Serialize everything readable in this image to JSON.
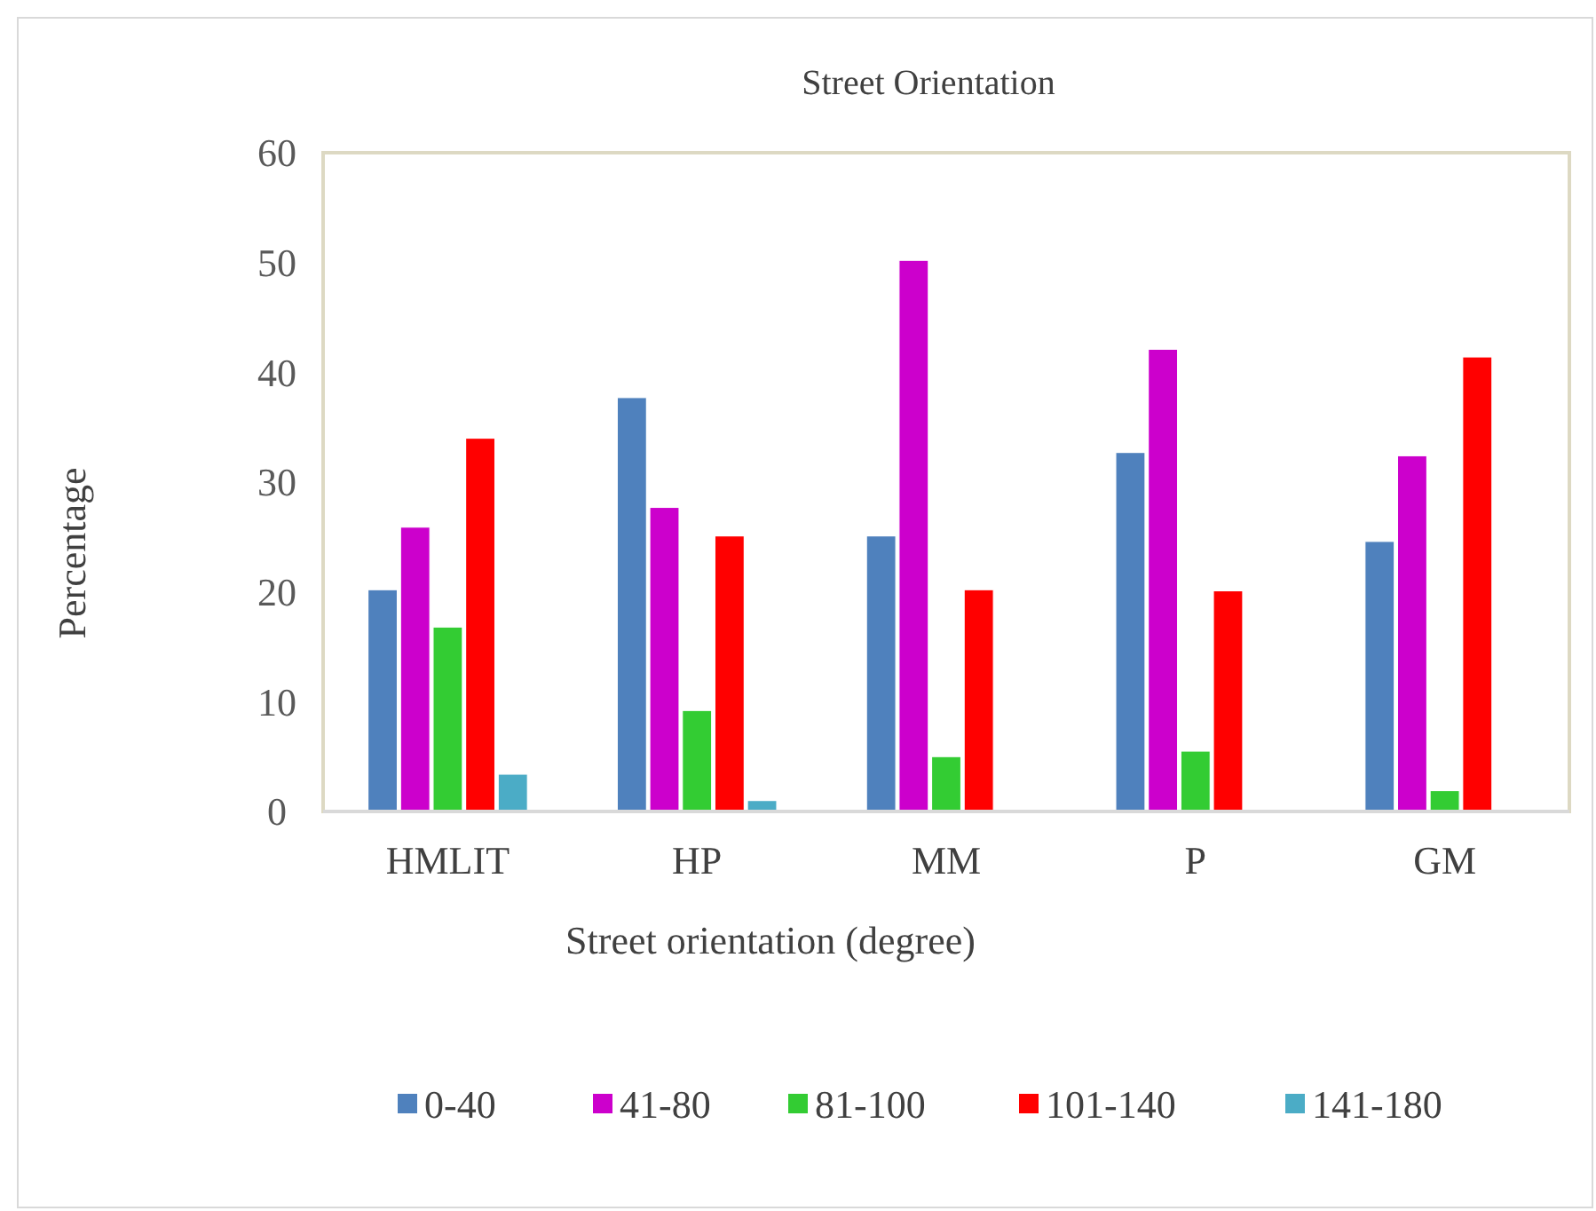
{
  "chart_data": {
    "type": "bar",
    "title": "Street Orientation",
    "xlabel": "Street orientation (degree)",
    "ylabel": "Percentage",
    "categories": [
      "HMLIT",
      "HP",
      "MM",
      "P",
      "GM"
    ],
    "series": [
      {
        "name": "0-40",
        "color": "#4f81bd",
        "values": [
          20.2,
          37.7,
          25.1,
          32.7,
          24.6
        ]
      },
      {
        "name": "41-80",
        "color": "#cc00cc",
        "values": [
          25.9,
          27.7,
          50.2,
          42.1,
          32.4
        ]
      },
      {
        "name": "81-100",
        "color": "#33cc33",
        "values": [
          16.8,
          9.2,
          5.0,
          5.5,
          1.9
        ]
      },
      {
        "name": "101-140",
        "color": "#ff0000",
        "values": [
          34.0,
          25.1,
          20.2,
          20.1,
          41.4
        ]
      },
      {
        "name": "141-180",
        "color": "#4bacc6",
        "values": [
          3.4,
          1.0,
          0,
          0,
          0
        ]
      }
    ],
    "ylim": [
      0,
      60
    ],
    "yticks": [
      0,
      10,
      20,
      30,
      40,
      50,
      60
    ],
    "grid": false,
    "legend": "bottom"
  }
}
